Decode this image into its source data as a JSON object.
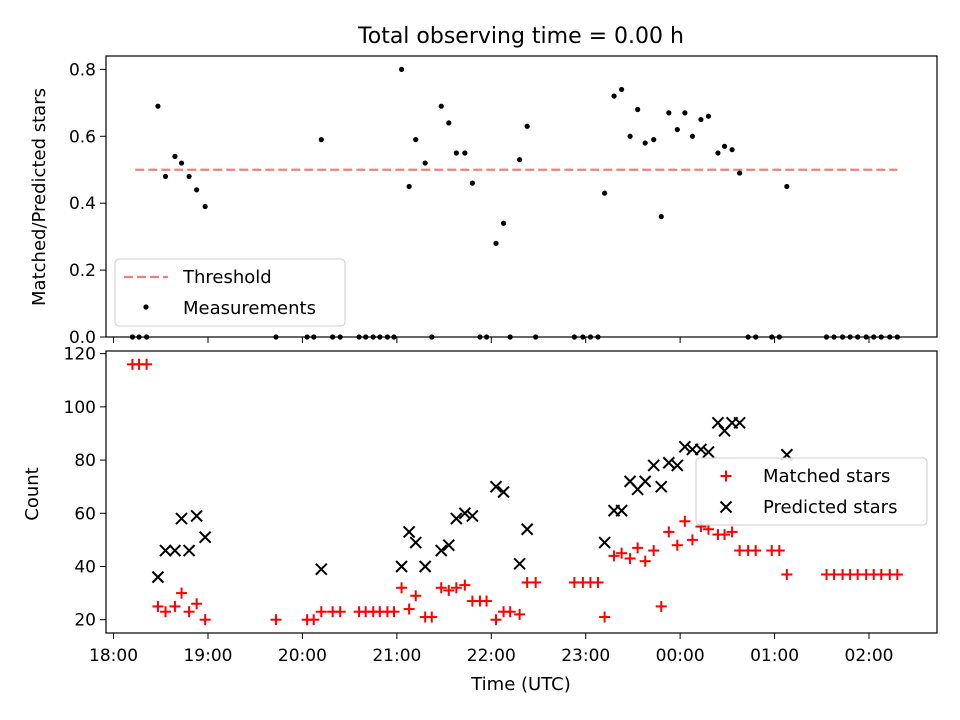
{
  "chart_data": [
    {
      "type": "scatter",
      "title": "Total observing time = 0.00 h",
      "xlabel": "",
      "ylabel": "Matched/Predicted stars",
      "xlim": [
        17.92,
        26.72
      ],
      "ylim": [
        0,
        0.84
      ],
      "yticks": [
        "0.0",
        "0.2",
        "0.4",
        "0.6",
        "0.8"
      ],
      "grid": false,
      "legend_position": "lower-left",
      "threshold": {
        "name": "Threshold",
        "y": 0.5,
        "x_range": [
          18.23,
          26.3
        ],
        "color": "#f08080"
      },
      "series": [
        {
          "name": "Measurements",
          "color": "#000000",
          "points": [
            [
              18.2,
              0
            ],
            [
              18.27,
              0
            ],
            [
              18.35,
              0
            ],
            [
              18.47,
              0.69
            ],
            [
              18.55,
              0.48
            ],
            [
              18.65,
              0.54
            ],
            [
              18.72,
              0.52
            ],
            [
              18.8,
              0.48
            ],
            [
              18.88,
              0.44
            ],
            [
              18.97,
              0.39
            ],
            [
              19.72,
              0
            ],
            [
              20.05,
              0
            ],
            [
              20.12,
              0
            ],
            [
              20.2,
              0.59
            ],
            [
              20.32,
              0
            ],
            [
              20.4,
              0
            ],
            [
              20.6,
              0
            ],
            [
              20.67,
              0
            ],
            [
              20.75,
              0
            ],
            [
              20.82,
              0
            ],
            [
              20.9,
              0
            ],
            [
              20.97,
              0
            ],
            [
              21.05,
              0.8
            ],
            [
              21.13,
              0.45
            ],
            [
              21.2,
              0.59
            ],
            [
              21.3,
              0.52
            ],
            [
              21.37,
              0
            ],
            [
              21.47,
              0.69
            ],
            [
              21.55,
              0.64
            ],
            [
              21.63,
              0.55
            ],
            [
              21.72,
              0.55
            ],
            [
              21.8,
              0.46
            ],
            [
              21.88,
              0
            ],
            [
              21.95,
              0
            ],
            [
              22.05,
              0.28
            ],
            [
              22.13,
              0.34
            ],
            [
              22.2,
              0
            ],
            [
              22.3,
              0.53
            ],
            [
              22.38,
              0.63
            ],
            [
              22.47,
              0
            ],
            [
              22.88,
              0
            ],
            [
              22.97,
              0
            ],
            [
              23.05,
              0
            ],
            [
              23.13,
              0
            ],
            [
              23.2,
              0.43
            ],
            [
              23.3,
              0.72
            ],
            [
              23.38,
              0.74
            ],
            [
              23.47,
              0.6
            ],
            [
              23.55,
              0.68
            ],
            [
              23.63,
              0.58
            ],
            [
              23.72,
              0.59
            ],
            [
              23.8,
              0.36
            ],
            [
              23.88,
              0.67
            ],
            [
              23.97,
              0.62
            ],
            [
              24.05,
              0.67
            ],
            [
              24.13,
              0.6
            ],
            [
              24.22,
              0.65
            ],
            [
              24.3,
              0.66
            ],
            [
              24.4,
              0.55
            ],
            [
              24.47,
              0.57
            ],
            [
              24.55,
              0.56
            ],
            [
              24.63,
              0.49
            ],
            [
              24.72,
              0
            ],
            [
              24.8,
              0
            ],
            [
              24.97,
              0
            ],
            [
              25.05,
              0
            ],
            [
              25.13,
              0.45
            ],
            [
              25.55,
              0
            ],
            [
              25.63,
              0
            ],
            [
              25.72,
              0
            ],
            [
              25.8,
              0
            ],
            [
              25.88,
              0
            ],
            [
              25.97,
              0
            ],
            [
              26.05,
              0
            ],
            [
              26.13,
              0
            ],
            [
              26.22,
              0
            ],
            [
              26.3,
              0
            ]
          ]
        }
      ]
    },
    {
      "type": "scatter",
      "title": "",
      "xlabel": "Time (UTC)",
      "ylabel": "Count",
      "xlim": [
        17.92,
        26.72
      ],
      "ylim": [
        15,
        121
      ],
      "yticks": [
        "20",
        "40",
        "60",
        "80",
        "100",
        "120"
      ],
      "xticks": [
        {
          "x": 18,
          "label": "18:00"
        },
        {
          "x": 19,
          "label": "19:00"
        },
        {
          "x": 20,
          "label": "20:00"
        },
        {
          "x": 21,
          "label": "21:00"
        },
        {
          "x": 22,
          "label": "22:00"
        },
        {
          "x": 23,
          "label": "23:00"
        },
        {
          "x": 24,
          "label": "00:00"
        },
        {
          "x": 25,
          "label": "01:00"
        },
        {
          "x": 26,
          "label": "02:00"
        }
      ],
      "grid": false,
      "legend_position": "center-right",
      "series": [
        {
          "name": "Matched stars",
          "marker": "+",
          "color": "#ff0000",
          "points": [
            [
              18.2,
              116
            ],
            [
              18.27,
              116
            ],
            [
              18.35,
              116
            ],
            [
              18.47,
              25
            ],
            [
              18.55,
              23
            ],
            [
              18.65,
              25
            ],
            [
              18.72,
              30
            ],
            [
              18.8,
              23
            ],
            [
              18.88,
              26
            ],
            [
              18.97,
              20
            ],
            [
              19.72,
              20
            ],
            [
              20.05,
              20
            ],
            [
              20.12,
              20
            ],
            [
              20.2,
              23
            ],
            [
              20.32,
              23
            ],
            [
              20.4,
              23
            ],
            [
              20.6,
              23
            ],
            [
              20.67,
              23
            ],
            [
              20.75,
              23
            ],
            [
              20.82,
              23
            ],
            [
              20.9,
              23
            ],
            [
              20.97,
              23
            ],
            [
              21.05,
              32
            ],
            [
              21.13,
              24
            ],
            [
              21.2,
              29
            ],
            [
              21.3,
              21
            ],
            [
              21.37,
              21
            ],
            [
              21.47,
              32
            ],
            [
              21.55,
              31
            ],
            [
              21.63,
              32
            ],
            [
              21.72,
              33
            ],
            [
              21.8,
              27
            ],
            [
              21.88,
              27
            ],
            [
              21.95,
              27
            ],
            [
              22.05,
              20
            ],
            [
              22.13,
              23
            ],
            [
              22.2,
              23
            ],
            [
              22.3,
              22
            ],
            [
              22.38,
              34
            ],
            [
              22.47,
              34
            ],
            [
              22.88,
              34
            ],
            [
              22.97,
              34
            ],
            [
              23.05,
              34
            ],
            [
              23.13,
              34
            ],
            [
              23.2,
              21
            ],
            [
              23.3,
              44
            ],
            [
              23.38,
              45
            ],
            [
              23.47,
              43
            ],
            [
              23.55,
              47
            ],
            [
              23.63,
              42
            ],
            [
              23.72,
              46
            ],
            [
              23.8,
              25
            ],
            [
              23.88,
              53
            ],
            [
              23.97,
              48
            ],
            [
              24.05,
              57
            ],
            [
              24.13,
              50
            ],
            [
              24.22,
              55
            ],
            [
              24.3,
              54
            ],
            [
              24.4,
              52
            ],
            [
              24.47,
              52
            ],
            [
              24.55,
              53
            ],
            [
              24.63,
              46
            ],
            [
              24.72,
              46
            ],
            [
              24.8,
              46
            ],
            [
              24.97,
              46
            ],
            [
              25.05,
              46
            ],
            [
              25.13,
              37
            ],
            [
              25.55,
              37
            ],
            [
              25.63,
              37
            ],
            [
              25.72,
              37
            ],
            [
              25.8,
              37
            ],
            [
              25.88,
              37
            ],
            [
              25.97,
              37
            ],
            [
              26.05,
              37
            ],
            [
              26.13,
              37
            ],
            [
              26.22,
              37
            ],
            [
              26.3,
              37
            ]
          ]
        },
        {
          "name": "Predicted stars",
          "marker": "x",
          "color": "#000000",
          "points": [
            [
              18.47,
              36
            ],
            [
              18.55,
              46
            ],
            [
              18.65,
              46
            ],
            [
              18.72,
              58
            ],
            [
              18.8,
              46
            ],
            [
              18.88,
              59
            ],
            [
              18.97,
              51
            ],
            [
              20.2,
              39
            ],
            [
              21.05,
              40
            ],
            [
              21.13,
              53
            ],
            [
              21.2,
              49
            ],
            [
              21.3,
              40
            ],
            [
              21.47,
              46
            ],
            [
              21.55,
              48
            ],
            [
              21.63,
              58
            ],
            [
              21.72,
              60
            ],
            [
              21.8,
              59
            ],
            [
              22.05,
              70
            ],
            [
              22.13,
              68
            ],
            [
              22.3,
              41
            ],
            [
              22.38,
              54
            ],
            [
              23.2,
              49
            ],
            [
              23.3,
              61
            ],
            [
              23.38,
              61
            ],
            [
              23.47,
              72
            ],
            [
              23.55,
              69
            ],
            [
              23.63,
              72
            ],
            [
              23.72,
              78
            ],
            [
              23.8,
              70
            ],
            [
              23.88,
              79
            ],
            [
              23.97,
              78
            ],
            [
              24.05,
              85
            ],
            [
              24.13,
              84
            ],
            [
              24.22,
              84
            ],
            [
              24.3,
              83
            ],
            [
              24.4,
              94
            ],
            [
              24.47,
              91
            ],
            [
              24.55,
              94
            ],
            [
              24.63,
              94
            ],
            [
              25.13,
              82
            ]
          ]
        }
      ]
    }
  ]
}
